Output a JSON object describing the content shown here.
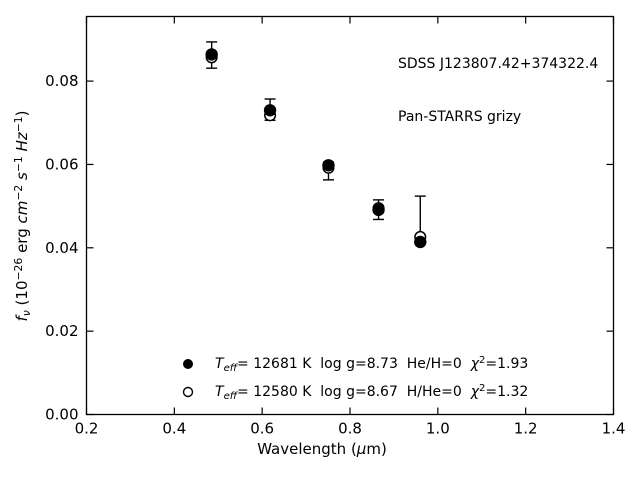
{
  "figure": {
    "background": "#ffffff",
    "foreground": "#000000"
  },
  "annotation": {
    "line1": "SDSS J123807.42+374322.4",
    "line2": "Pan-STARRS grizy"
  },
  "legend": {
    "entries": [
      {
        "marker": "filled-circle",
        "segments": [
          {
            "t": "T",
            "i": 1
          },
          {
            "t": "eff",
            "i": 1,
            "v": "sub"
          },
          {
            "t": "= 12681 K  log g=8.73  He/H=0  "
          },
          {
            "t": "χ",
            "i": 1
          },
          {
            "t": "2",
            "v": "sup"
          },
          {
            "t": "=1.93"
          }
        ]
      },
      {
        "marker": "open-circle",
        "segments": [
          {
            "t": "T",
            "i": 1
          },
          {
            "t": "eff",
            "i": 1,
            "v": "sub"
          },
          {
            "t": "= 12580 K  log g=8.67  H/He=0  "
          },
          {
            "t": "χ",
            "i": 1
          },
          {
            "t": "2",
            "v": "sup"
          },
          {
            "t": "=1.32"
          }
        ]
      }
    ]
  },
  "chart_data": {
    "type": "scatter",
    "title": "",
    "annotations": [
      "SDSS J123807.42+374322.4",
      "Pan-STARRS grizy"
    ],
    "xlabel": "Wavelength (μm)",
    "ylabel": "fν (10⁻²⁶ erg cm⁻² s⁻¹ Hz⁻¹)",
    "xlabel_segments": [
      {
        "t": "Wavelength ("
      },
      {
        "t": "μ",
        "i": 1
      },
      {
        "t": "m)"
      }
    ],
    "ylabel_segments": [
      {
        "t": "f",
        "i": 1
      },
      {
        "t": "ν",
        "i": 1,
        "v": "sub"
      },
      {
        "t": " (10"
      },
      {
        "t": "−26",
        "v": "sup"
      },
      {
        "t": " erg "
      },
      {
        "t": "cm",
        "i": 1
      },
      {
        "t": "−2",
        "v": "sup"
      },
      {
        "t": " "
      },
      {
        "t": "s",
        "i": 1
      },
      {
        "t": "−1",
        "v": "sup"
      },
      {
        "t": " "
      },
      {
        "t": "Hz",
        "i": 1
      },
      {
        "t": "−1",
        "v": "sup"
      },
      {
        "t": ")"
      }
    ],
    "xlim": [
      0.2,
      1.4
    ],
    "ylim": [
      0.0,
      0.0955
    ],
    "xticks": [
      0.2,
      0.4,
      0.6,
      0.8,
      1.0,
      1.2,
      1.4
    ],
    "xtick_labels": [
      "0.2",
      "0.4",
      "0.6",
      "0.8",
      "1.0",
      "1.2",
      "1.4"
    ],
    "yticks": [
      0.0,
      0.02,
      0.04,
      0.06,
      0.08
    ],
    "ytick_labels": [
      "0.00",
      "0.02",
      "0.04",
      "0.06",
      "0.08"
    ],
    "grid": false,
    "legend_position": "lower center inside axes",
    "bands": [
      "g",
      "r",
      "i",
      "z",
      "y"
    ],
    "x": [
      0.485,
      0.618,
      0.751,
      0.865,
      0.96
    ],
    "observed": {
      "name": "Pan-STARRS grizy photometry",
      "values": [
        0.0863,
        0.0732,
        0.0584,
        0.0491,
        0.0426
      ],
      "err_plus": [
        0.0031,
        0.0025,
        0.0022,
        0.0024,
        0.0098
      ],
      "err_minus": [
        0.0032,
        0.0026,
        0.0021,
        0.0023,
        0.0005
      ]
    },
    "series": [
      {
        "name": "Teff= 12681 K  log g=8.73  He/H=0  χ²=1.93",
        "marker": "filled-circle",
        "values": [
          0.0864,
          0.073,
          0.0598,
          0.0491,
          0.0414
        ]
      },
      {
        "name": "Teff= 12580 K  log g=8.67  H/He=0  χ²=1.32",
        "marker": "open-circle",
        "values": [
          0.0857,
          0.0718,
          0.0592,
          0.0495,
          0.0426
        ]
      }
    ]
  }
}
